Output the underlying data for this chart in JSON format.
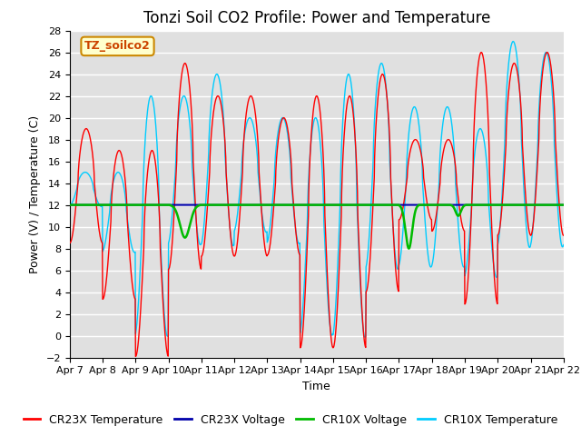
{
  "title": "Tonzi Soil CO2 Profile: Power and Temperature",
  "xlabel": "Time",
  "ylabel": "Power (V) / Temperature (C)",
  "ylim": [
    -2,
    28
  ],
  "yticks": [
    -2,
    0,
    2,
    4,
    6,
    8,
    10,
    12,
    14,
    16,
    18,
    20,
    22,
    24,
    26,
    28
  ],
  "x_tick_labels": [
    "Apr 7",
    "Apr 8",
    "Apr 9",
    "Apr 10",
    "Apr 11",
    "Apr 12",
    "Apr 13",
    "Apr 14",
    "Apr 15",
    "Apr 16",
    "Apr 17",
    "Apr 18",
    "Apr 19",
    "Apr 20",
    "Apr 21",
    "Apr 22"
  ],
  "annotation_text": "TZ_soilco2",
  "annotation_color": "#cc4400",
  "annotation_bg": "#ffffcc",
  "annotation_edge": "#cc8800",
  "cr23x_temp_color": "#ff0000",
  "cr23x_volt_color": "#0000aa",
  "cr10x_volt_color": "#00bb00",
  "cr10x_temp_color": "#00ccff",
  "background_color": "#e0e0e0",
  "grid_color": "#ffffff",
  "title_fontsize": 12,
  "label_fontsize": 9,
  "tick_fontsize": 8,
  "legend_fontsize": 9,
  "voltage_level": 12.0
}
